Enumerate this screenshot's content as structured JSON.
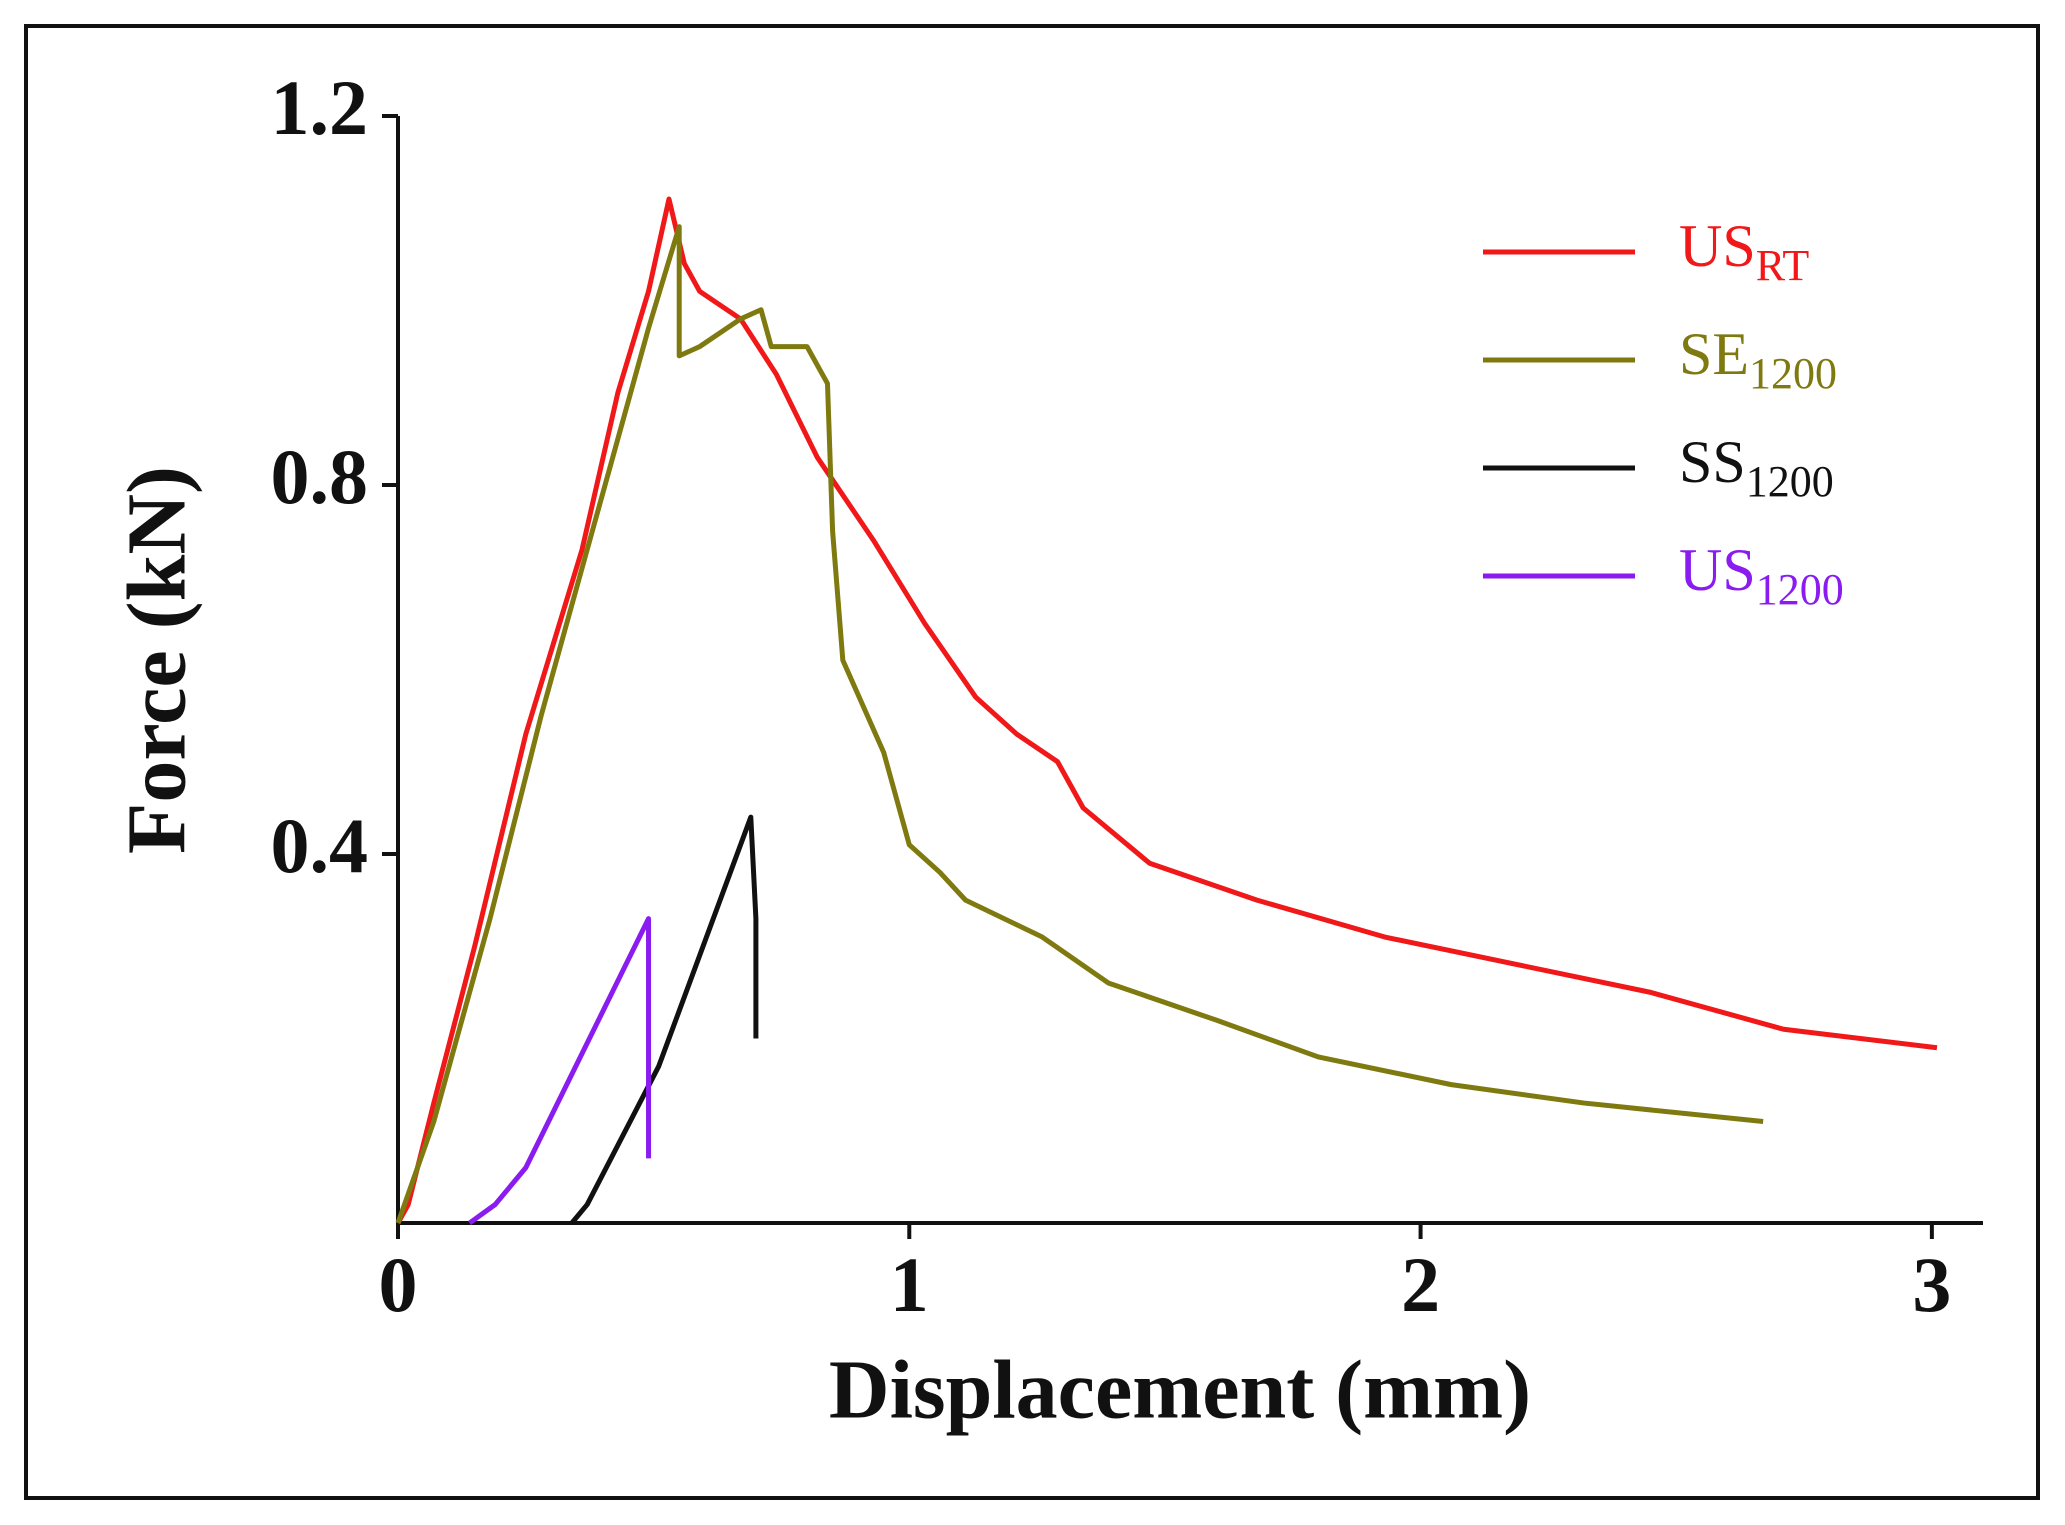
{
  "chart_data": {
    "type": "line",
    "xlabel": "Displacement (mm)",
    "ylabel": "Force (kN)",
    "xlim": [
      0,
      3.1
    ],
    "ylim": [
      0,
      1.2
    ],
    "xticks": [
      0,
      1,
      2,
      3
    ],
    "yticks": [
      0.4,
      0.8,
      1.2
    ],
    "grid": false,
    "legend": "upper right",
    "series": [
      {
        "name": "US",
        "subscript": "RT",
        "color": "#f01818",
        "x": [
          0,
          0.02,
          0.07,
          0.15,
          0.25,
          0.36,
          0.43,
          0.49,
          0.53,
          0.56,
          0.59,
          0.67,
          0.74,
          0.82,
          0.93,
          1.03,
          1.13,
          1.21,
          1.29,
          1.34,
          1.47,
          1.68,
          1.93,
          2.19,
          2.45,
          2.71,
          3.01
        ],
        "values": [
          0,
          0.02,
          0.13,
          0.3,
          0.53,
          0.73,
          0.9,
          1.01,
          1.11,
          1.04,
          1.01,
          0.98,
          0.92,
          0.83,
          0.74,
          0.65,
          0.57,
          0.53,
          0.5,
          0.45,
          0.39,
          0.35,
          0.31,
          0.28,
          0.25,
          0.21,
          0.19
        ]
      },
      {
        "name": "SE",
        "subscript": "1200",
        "color": "#7f7a10",
        "x": [
          0,
          0.07,
          0.18,
          0.28,
          0.38,
          0.49,
          0.55,
          0.55,
          0.59,
          0.67,
          0.71,
          0.73,
          0.8,
          0.84,
          0.85,
          0.87,
          0.95,
          1.0,
          1.06,
          1.11,
          1.26,
          1.39,
          1.6,
          1.8,
          2.06,
          2.32,
          2.67
        ],
        "values": [
          0,
          0.11,
          0.33,
          0.55,
          0.75,
          0.97,
          1.08,
          0.94,
          0.95,
          0.98,
          0.99,
          0.95,
          0.95,
          0.91,
          0.75,
          0.61,
          0.51,
          0.41,
          0.38,
          0.35,
          0.31,
          0.26,
          0.22,
          0.18,
          0.15,
          0.13,
          0.11
        ]
      },
      {
        "name": "SS",
        "subscript": "1200",
        "color": "#111111",
        "x": [
          0.34,
          0.37,
          0.51,
          0.69,
          0.7,
          0.7
        ],
        "values": [
          0,
          0.02,
          0.17,
          0.44,
          0.33,
          0.2
        ]
      },
      {
        "name": "US",
        "subscript": "1200",
        "color": "#8a1cf0",
        "x": [
          0.14,
          0.19,
          0.25,
          0.49,
          0.49
        ],
        "values": [
          0,
          0.02,
          0.06,
          0.33,
          0.07
        ]
      }
    ]
  }
}
